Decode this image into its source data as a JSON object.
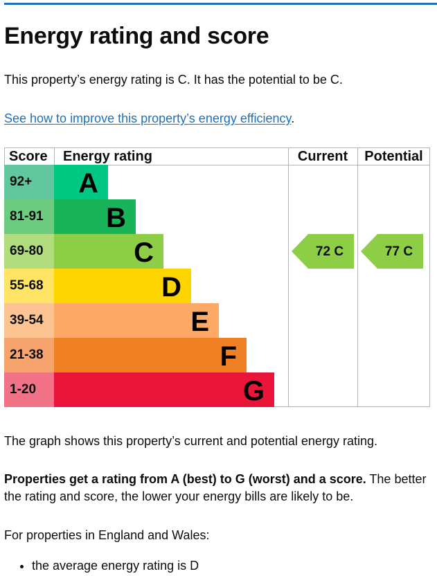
{
  "page": {
    "title": "Energy rating and score",
    "summary": "This property’s energy rating is C. It has the potential to be C.",
    "improve_link": "See how to improve this property’s energy efficiency",
    "improve_link_suffix": ".",
    "graph_note": "The graph shows this property’s current and potential energy rating.",
    "rating_note_bold": "Properties get a rating from A (best) to G (worst) and a score.",
    "rating_note_rest": " The better the rating and score, the lower your energy bills are likely to be.",
    "region_note": "For properties in England and Wales:",
    "bullets": [
      "the average energy rating is D"
    ]
  },
  "chart_data": {
    "type": "table",
    "headers": {
      "score": "Score",
      "rating": "Energy rating",
      "current": "Current",
      "potential": "Potential"
    },
    "bands": [
      {
        "score": "92+",
        "letter": "A",
        "score_bg": "#62c69e",
        "bar": "#00c781"
      },
      {
        "score": "81-91",
        "letter": "B",
        "score_bg": "#6ccb7e",
        "bar": "#19b459"
      },
      {
        "score": "69-80",
        "letter": "C",
        "score_bg": "#b1dd7e",
        "bar": "#8dce46"
      },
      {
        "score": "55-68",
        "letter": "D",
        "score_bg": "#ffe466",
        "bar": "#ffd500"
      },
      {
        "score": "39-54",
        "letter": "E",
        "score_bg": "#fdc493",
        "bar": "#fcaa65"
      },
      {
        "score": "21-38",
        "letter": "F",
        "score_bg": "#f4a46c",
        "bar": "#ef8023"
      },
      {
        "score": "1-20",
        "letter": "G",
        "score_bg": "#f27287",
        "bar": "#e9153b"
      }
    ],
    "current": {
      "score": 72,
      "letter": "C",
      "label": "72  C",
      "color": "#8dce46"
    },
    "potential": {
      "score": 77,
      "letter": "C",
      "label": "77  C",
      "color": "#8dce46"
    }
  }
}
